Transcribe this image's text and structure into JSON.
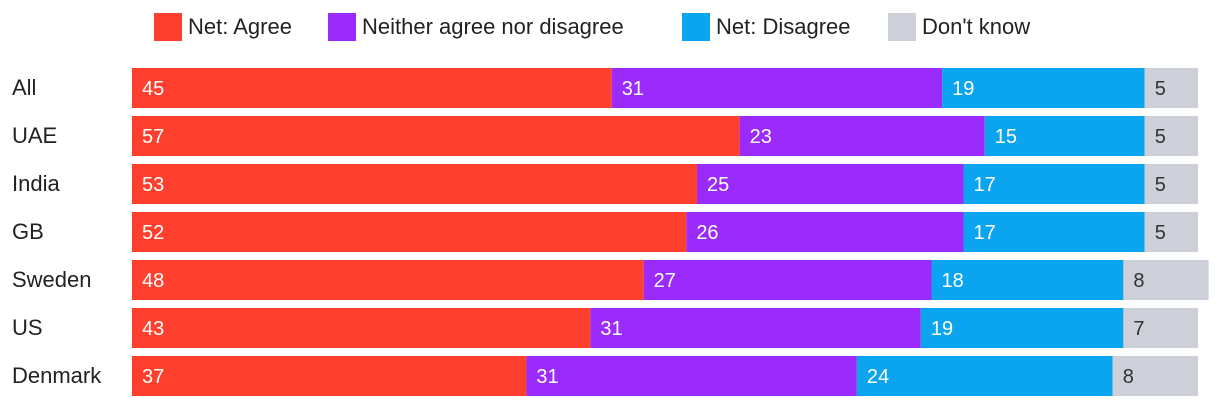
{
  "chart_data": {
    "type": "bar",
    "orientation": "horizontal",
    "stacked": true,
    "title": "",
    "xlabel": "",
    "ylabel": "",
    "xlim": [
      0,
      100
    ],
    "legend_position": "top",
    "categories": [
      "All",
      "UAE",
      "India",
      "GB",
      "Sweden",
      "US",
      "Denmark"
    ],
    "series": [
      {
        "name": "Net: Agree",
        "color": "#ff3f2e",
        "label_color": "#ffffff",
        "values": [
          45,
          57,
          53,
          52,
          48,
          43,
          37
        ]
      },
      {
        "name": "Neither agree nor disagree",
        "color": "#9b2bfa",
        "label_color": "#ffffff",
        "values": [
          31,
          23,
          25,
          26,
          27,
          31,
          31
        ]
      },
      {
        "name": "Net: Disagree",
        "color": "#0ba4ee",
        "label_color": "#ffffff",
        "values": [
          19,
          15,
          17,
          17,
          18,
          19,
          24
        ]
      },
      {
        "name": "Don't know",
        "color": "#cdd0d9",
        "label_color": "#333333",
        "values": [
          5,
          5,
          5,
          5,
          8,
          7,
          8
        ]
      }
    ]
  }
}
